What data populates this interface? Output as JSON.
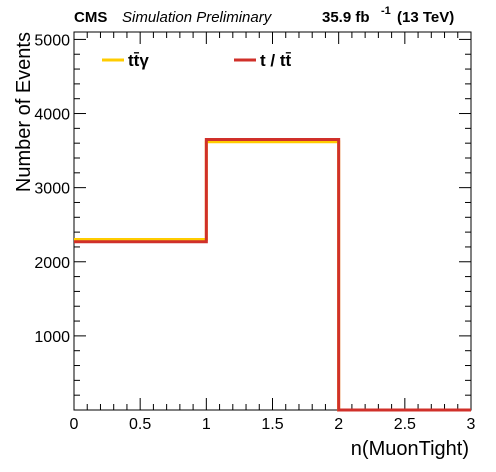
{
  "header": {
    "experiment": "CMS",
    "status": "Simulation Preliminary",
    "lumi_value": "35.9 fb",
    "lumi_exponent": "-1",
    "energy": "(13 TeV)"
  },
  "chart_data": {
    "type": "step-histogram",
    "xlabel": "n(MuonTight)",
    "ylabel": "Number of Events",
    "xlim": [
      0,
      3
    ],
    "ylim": [
      0,
      5100
    ],
    "bin_edges": [
      0,
      1,
      2,
      3
    ],
    "x_ticks": [
      "0",
      "0.5",
      "1",
      "1.5",
      "2",
      "2.5",
      "3"
    ],
    "x_tick_values": [
      0,
      0.5,
      1,
      1.5,
      2,
      2.5,
      3
    ],
    "y_ticks": [
      "1000",
      "2000",
      "3000",
      "4000",
      "5000"
    ],
    "y_tick_values": [
      1000,
      2000,
      3000,
      4000,
      5000
    ],
    "legend_placement": "top",
    "series": [
      {
        "name": "tt̄γ",
        "color": "#ffcc00",
        "values": [
          2300,
          3620,
          0
        ]
      },
      {
        "name": "t / tt̄",
        "color": "#d0302a",
        "values": [
          2270,
          3650,
          0
        ]
      }
    ]
  }
}
